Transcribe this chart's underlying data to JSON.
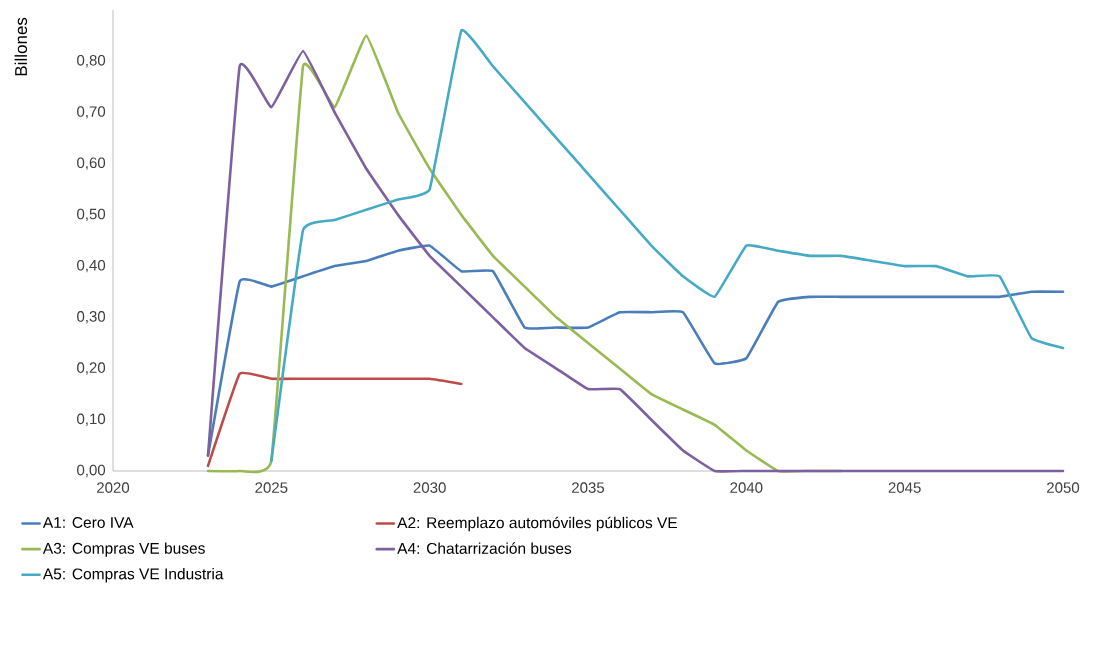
{
  "chart_data": {
    "type": "line",
    "ylabel": "Billones",
    "x": [
      2023,
      2024,
      2025,
      2026,
      2027,
      2028,
      2029,
      2030,
      2031,
      2032,
      2033,
      2034,
      2035,
      2036,
      2037,
      2038,
      2039,
      2040,
      2041,
      2042,
      2043,
      2044,
      2045,
      2046,
      2047,
      2048,
      2049,
      2050
    ],
    "series": [
      {
        "name": "A1: Cero IVA",
        "color": "#4a7ebb",
        "values": [
          0.03,
          0.37,
          0.36,
          0.38,
          0.4,
          0.41,
          0.43,
          0.44,
          0.39,
          0.39,
          0.28,
          0.28,
          0.28,
          0.31,
          0.31,
          0.31,
          0.21,
          0.22,
          0.33,
          0.34,
          0.34,
          0.34,
          0.34,
          0.34,
          0.34,
          0.34,
          0.35,
          0.35
        ]
      },
      {
        "name": "A2: Reemplazo automóviles públicos VE",
        "color": "#be4b48",
        "values": [
          0.01,
          0.19,
          0.18,
          0.18,
          0.18,
          0.18,
          0.18,
          0.18,
          0.17,
          null,
          null,
          null,
          null,
          null,
          null,
          null,
          null,
          null,
          null,
          null,
          null,
          null,
          null,
          null,
          null,
          null,
          null,
          null
        ]
      },
      {
        "name": "A3: Compras VE buses",
        "color": "#98b954",
        "values": [
          0,
          0,
          0.02,
          0.79,
          0.71,
          0.85,
          0.7,
          0.59,
          0.5,
          0.42,
          0.36,
          0.3,
          0.25,
          0.2,
          0.15,
          0.12,
          0.09,
          0.04,
          0,
          0,
          0,
          null,
          null,
          null,
          null,
          null,
          null,
          null
        ]
      },
      {
        "name": "A4: Chatarrización buses",
        "color": "#7d60a0",
        "values": [
          0.03,
          0.79,
          0.71,
          0.82,
          0.7,
          0.59,
          0.5,
          0.42,
          0.36,
          0.3,
          0.24,
          0.2,
          0.16,
          0.16,
          0.1,
          0.04,
          0,
          0,
          0,
          0,
          0,
          0,
          0,
          0,
          0,
          0,
          0,
          0
        ]
      },
      {
        "name": "A5: Compras VE Industria",
        "color": "#46aac5",
        "values": [
          null,
          null,
          0.02,
          0.47,
          0.49,
          0.51,
          0.53,
          0.55,
          0.86,
          0.79,
          0.72,
          0.65,
          0.58,
          0.51,
          0.44,
          0.38,
          0.34,
          0.44,
          0.43,
          0.42,
          0.42,
          0.41,
          0.4,
          0.4,
          0.38,
          0.38,
          0.26,
          0.24
        ]
      }
    ],
    "xlim": [
      2020,
      2050
    ],
    "xticks": [
      2020,
      2025,
      2030,
      2035,
      2040,
      2045,
      2050
    ],
    "ylim": [
      0,
      0.9
    ],
    "yticks": [
      {
        "value": 0,
        "label": "0,00"
      },
      {
        "value": 0.1,
        "label": "0,10"
      },
      {
        "value": 0.2,
        "label": "0,20"
      },
      {
        "value": 0.3,
        "label": "0,30"
      },
      {
        "value": 0.4,
        "label": "0,40"
      },
      {
        "value": 0.5,
        "label": "0,50"
      },
      {
        "value": 0.6,
        "label": "0,60"
      },
      {
        "value": 0.7,
        "label": "0,70"
      },
      {
        "value": 0.8,
        "label": "0,80"
      }
    ],
    "grid": false,
    "legend": "bottom",
    "line_style": "solid"
  }
}
